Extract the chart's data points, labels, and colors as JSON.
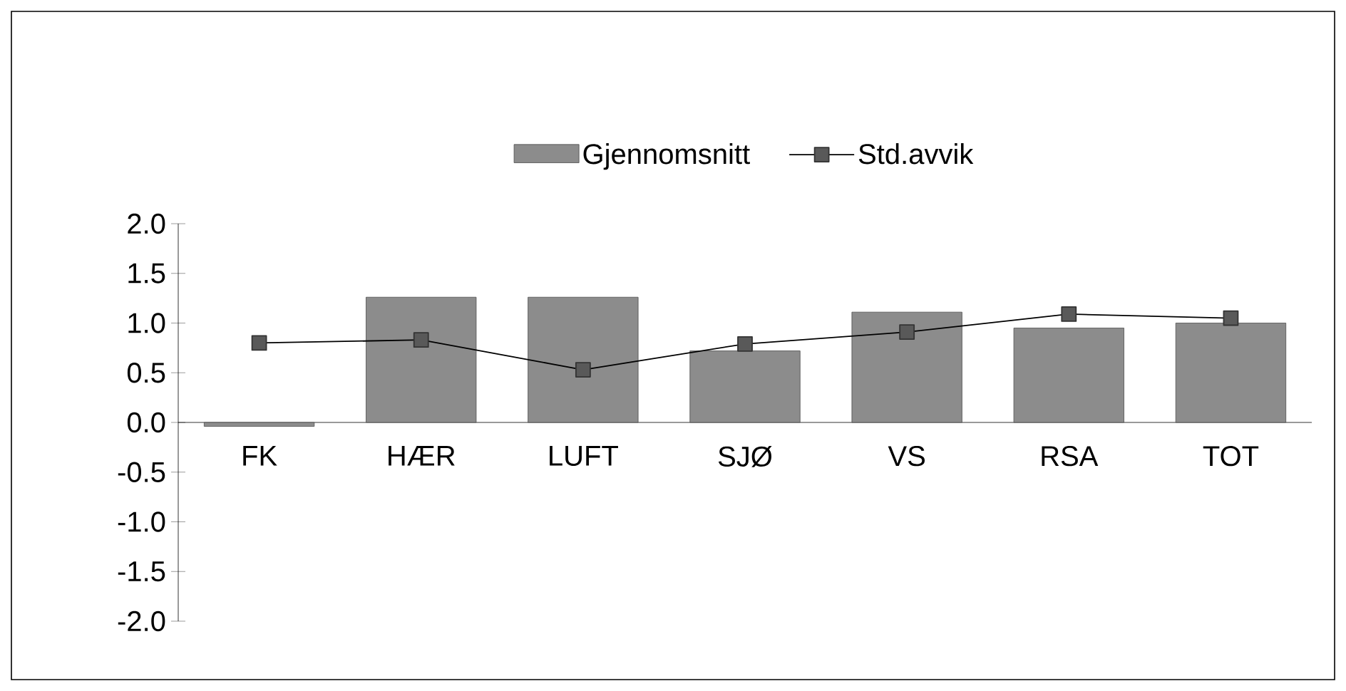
{
  "chart_data": {
    "type": "bar",
    "categories": [
      "FK",
      "HÆR",
      "LUFT",
      "SJØ",
      "VS",
      "RSA",
      "TOT"
    ],
    "series": [
      {
        "name": "Gjennomsnitt",
        "color": "#8c8c8c",
        "values": [
          -0.04,
          1.26,
          1.26,
          0.72,
          1.11,
          0.95,
          1.0
        ]
      },
      {
        "name": "Std.avvik",
        "type": "line",
        "color": "#000000",
        "marker": "square",
        "values": [
          0.8,
          0.83,
          0.53,
          0.79,
          0.91,
          1.09,
          1.05
        ]
      }
    ],
    "ylim": [
      -2.0,
      2.0
    ],
    "yticks": [
      {
        "value": -2,
        "label": "-2.0"
      },
      {
        "value": -1.5,
        "label": "-1.5"
      },
      {
        "value": -1,
        "label": "-1.0"
      },
      {
        "value": -0.5,
        "label": "-0.5"
      },
      {
        "value": 0,
        "label": "0.0"
      },
      {
        "value": 0.5,
        "label": "0.5"
      },
      {
        "value": 1,
        "label": "1.0"
      },
      {
        "value": 1.5,
        "label": "1.5"
      },
      {
        "value": 2,
        "label": "2.0"
      }
    ],
    "grid": false,
    "legend": "top"
  }
}
